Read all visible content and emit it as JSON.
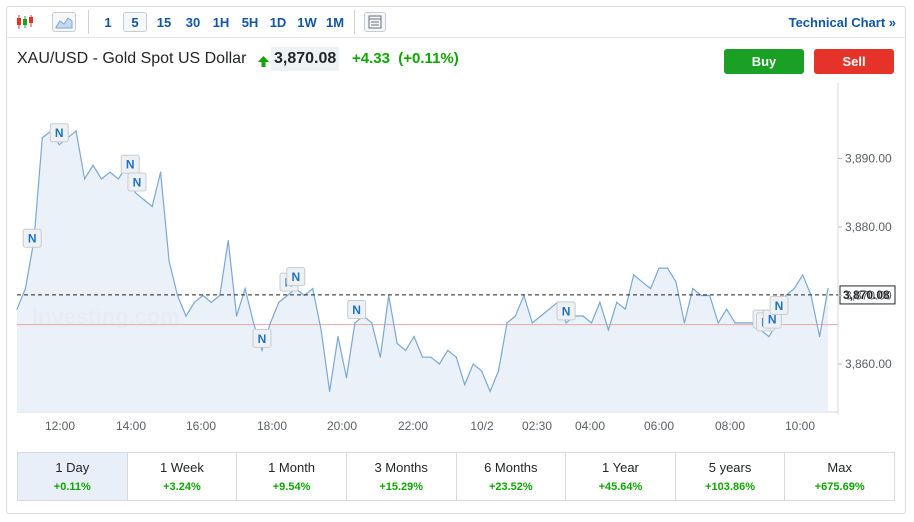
{
  "toolbar": {
    "candles_icon": "candlestick-chart-icon",
    "area_icon": "area-chart-icon",
    "intervals": [
      "1",
      "5",
      "15",
      "30",
      "1H",
      "5H",
      "1D",
      "1W",
      "1M"
    ],
    "active_interval": "5",
    "indicators_icon": "indicators-icon",
    "technical_chart_label": "Technical Chart »"
  },
  "header": {
    "instrument": "XAU/USD - Gold Spot US Dollar",
    "price": "3,870.08",
    "change": "+4.33  (+0.11%)",
    "buy_label": "Buy",
    "sell_label": "Sell"
  },
  "colors": {
    "accent": "#1256a0",
    "positive": "#0ea600",
    "buy": "#1aa024",
    "sell": "#e5332a",
    "line": "#7ba8d4",
    "fill": "#e6eef7"
  },
  "chart_data": {
    "type": "area",
    "title": "",
    "xlabel": "",
    "ylabel": "",
    "x_ticks": [
      "12:00",
      "14:00",
      "16:00",
      "18:00",
      "20:00",
      "22:00",
      "10/2",
      "02:30",
      "04:00",
      "06:00",
      "08:00",
      "10:00"
    ],
    "y_ticks": [
      "3,860.00",
      "3,870.00",
      "3,880.00",
      "3,890.00"
    ],
    "ylim": [
      3853,
      3901
    ],
    "last_price_label": "3,870.08",
    "reference_line": 3865.75,
    "watermark": "Investing.com",
    "series": [
      {
        "x": [
          10.75,
          11.0,
          11.25,
          11.5,
          11.75,
          12.0,
          12.25,
          12.5,
          12.75,
          13.0,
          13.25,
          13.5,
          13.75,
          14.0,
          14.25,
          14.5,
          14.75,
          15.0,
          15.25,
          15.5,
          15.75,
          16.0,
          16.25,
          16.5,
          16.75,
          17.0,
          17.25,
          17.5,
          17.75,
          18.0,
          18.25,
          18.5,
          18.75,
          19.0,
          19.25,
          19.5,
          19.75,
          20.0,
          20.25,
          20.5,
          20.75,
          21.0,
          21.25,
          21.5,
          21.75,
          22.0,
          22.25,
          22.5,
          22.75,
          23.0,
          23.25,
          23.5,
          23.75,
          24.0,
          24.25,
          24.5,
          24.75,
          25.0,
          25.25,
          25.5,
          25.75,
          26.0,
          26.25,
          26.5,
          26.75,
          27.0,
          27.25,
          27.5,
          27.75,
          28.0,
          28.25,
          28.5,
          28.75,
          29.0,
          29.25,
          29.5,
          29.75,
          30.0,
          30.25,
          30.5,
          30.75,
          31.0,
          31.25,
          31.5,
          31.75,
          32.0,
          32.25,
          32.5,
          32.75,
          33.0,
          33.25,
          33.5,
          33.75,
          34.0,
          34.25,
          34.5,
          34.75
        ],
        "values": [
          3868,
          3871,
          3878,
          3893,
          3894,
          3892,
          3893,
          3894,
          3887,
          3889,
          3887,
          3888,
          3887,
          3889,
          3885,
          3884,
          3883,
          3888,
          3875,
          3870,
          3867,
          3869,
          3870,
          3869,
          3870,
          3878,
          3867,
          3871,
          3866,
          3862,
          3866,
          3869,
          3870,
          3871,
          3870,
          3871,
          3865,
          3856,
          3864,
          3858,
          3866,
          3867,
          3866,
          3861,
          3870,
          3863,
          3862,
          3864,
          3861,
          3861,
          3860,
          3862,
          3861,
          3857,
          3860,
          3859,
          3856,
          3859,
          3866,
          3867,
          3870,
          3866,
          3867,
          3868,
          3869,
          3866,
          3867,
          3867,
          3866,
          3869,
          3865,
          3869,
          3868,
          3873,
          3872,
          3871,
          3874,
          3874,
          3872,
          3866,
          3871,
          3870,
          3870,
          3866,
          3868,
          3866,
          3866,
          3866,
          3865,
          3864,
          3866,
          3870,
          3871,
          3873,
          3870,
          3864,
          3871
        ]
      }
    ],
    "news_markers": [
      11.2,
      12.0,
      14.1,
      14.3,
      18.0,
      18.8,
      19.0,
      20.8,
      27.0,
      32.8,
      32.9,
      33.1,
      33.3
    ]
  },
  "periods": [
    {
      "label": "1 Day",
      "change": "+0.11%"
    },
    {
      "label": "1 Week",
      "change": "+3.24%"
    },
    {
      "label": "1 Month",
      "change": "+9.54%"
    },
    {
      "label": "3 Months",
      "change": "+15.29%"
    },
    {
      "label": "6 Months",
      "change": "+23.52%"
    },
    {
      "label": "1 Year",
      "change": "+45.64%"
    },
    {
      "label": "5 years",
      "change": "+103.86%"
    },
    {
      "label": "Max",
      "change": "+675.69%"
    }
  ],
  "news_marker_label": "N"
}
